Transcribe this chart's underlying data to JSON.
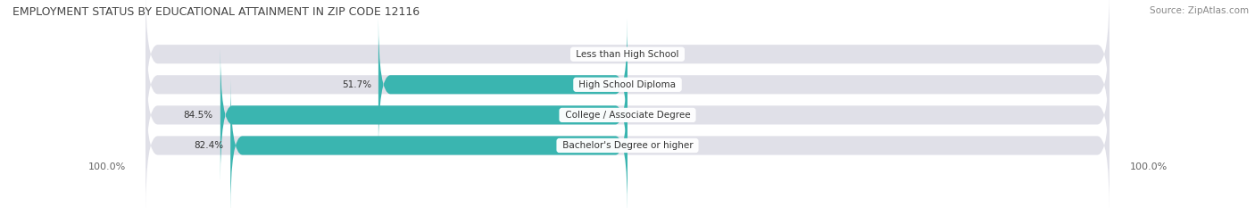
{
  "title": "EMPLOYMENT STATUS BY EDUCATIONAL ATTAINMENT IN ZIP CODE 12116",
  "source": "Source: ZipAtlas.com",
  "categories": [
    "Less than High School",
    "High School Diploma",
    "College / Associate Degree",
    "Bachelor's Degree or higher"
  ],
  "in_labor_force": [
    0.0,
    51.7,
    84.5,
    82.4
  ],
  "unemployed": [
    0.0,
    0.0,
    0.0,
    0.0
  ],
  "labor_force_color": "#3ab5b0",
  "unemployed_color": "#f0a0b8",
  "bar_bg_color": "#e0e0e8",
  "axis_label_left": "100.0%",
  "axis_label_right": "100.0%",
  "max_value": 100.0,
  "title_fontsize": 9,
  "source_fontsize": 7.5,
  "label_fontsize": 7.5,
  "tick_fontsize": 8,
  "legend_fontsize": 8,
  "background_color": "#ffffff",
  "title_color": "#444444",
  "source_color": "#888888",
  "label_color": "#333333",
  "tick_color": "#666666"
}
